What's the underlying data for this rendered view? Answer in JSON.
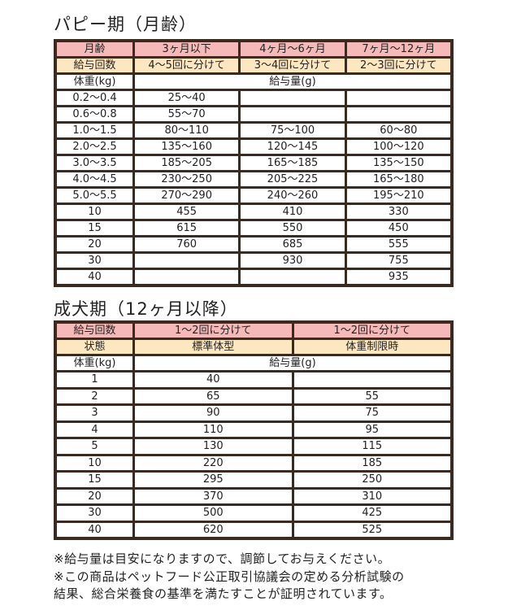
{
  "puppy": {
    "title": "パピー期（月齢）",
    "age_label": "月齢",
    "ages": [
      "3ヶ月以下",
      "4ヶ月〜6ヶ月",
      "7ヶ月〜12ヶ月"
    ],
    "times_label": "給与回数",
    "times": [
      "4〜5回に分けて",
      "3〜4回に分けて",
      "2〜3回に分けて"
    ],
    "weight_label": "体重(kg)",
    "amount_label": "給与量(g)",
    "rows": [
      [
        "0.2〜0.4",
        "25〜40",
        "",
        ""
      ],
      [
        "0.6〜0.8",
        "55〜70",
        "",
        ""
      ],
      [
        "1.0〜1.5",
        "80〜110",
        "75〜100",
        "60〜80"
      ],
      [
        "2.0〜2.5",
        "135〜160",
        "120〜145",
        "100〜120"
      ],
      [
        "3.0〜3.5",
        "185〜205",
        "165〜185",
        "135〜150"
      ],
      [
        "4.0〜4.5",
        "230〜250",
        "205〜225",
        "165〜180"
      ],
      [
        "5.0〜5.5",
        "270〜290",
        "240〜260",
        "195〜210"
      ],
      [
        "10",
        "455",
        "410",
        "330"
      ],
      [
        "15",
        "615",
        "550",
        "450"
      ],
      [
        "20",
        "760",
        "685",
        "555"
      ],
      [
        "30",
        "",
        "930",
        "755"
      ],
      [
        "40",
        "",
        "",
        "935"
      ]
    ]
  },
  "adult": {
    "title": "成犬期（12ヶ月以降）",
    "times_label": "給与回数",
    "times": [
      "1〜2回に分けて",
      "1〜2回に分けて"
    ],
    "state_label": "状態",
    "states": [
      "標準体型",
      "体重制限時"
    ],
    "weight_label": "体重(kg)",
    "amount_label": "給与量(g)",
    "rows": [
      [
        "1",
        "40",
        ""
      ],
      [
        "2",
        "65",
        "55"
      ],
      [
        "3",
        "90",
        "75"
      ],
      [
        "4",
        "110",
        "95"
      ],
      [
        "5",
        "130",
        "115"
      ],
      [
        "10",
        "220",
        "185"
      ],
      [
        "15",
        "295",
        "250"
      ],
      [
        "20",
        "370",
        "310"
      ],
      [
        "30",
        "500",
        "425"
      ],
      [
        "40",
        "620",
        "525"
      ]
    ]
  },
  "notes": [
    "※給与量は目安になりますので、調節してお与えください。",
    "※この商品はペットフード公正取引協議会の定める分析試験の",
    "結果、総合栄養食の基準を満たすことが証明されています。"
  ],
  "colors": {
    "border": "#3a2a20",
    "pink": "#f6b9b9",
    "cream": "#fde7c0"
  }
}
